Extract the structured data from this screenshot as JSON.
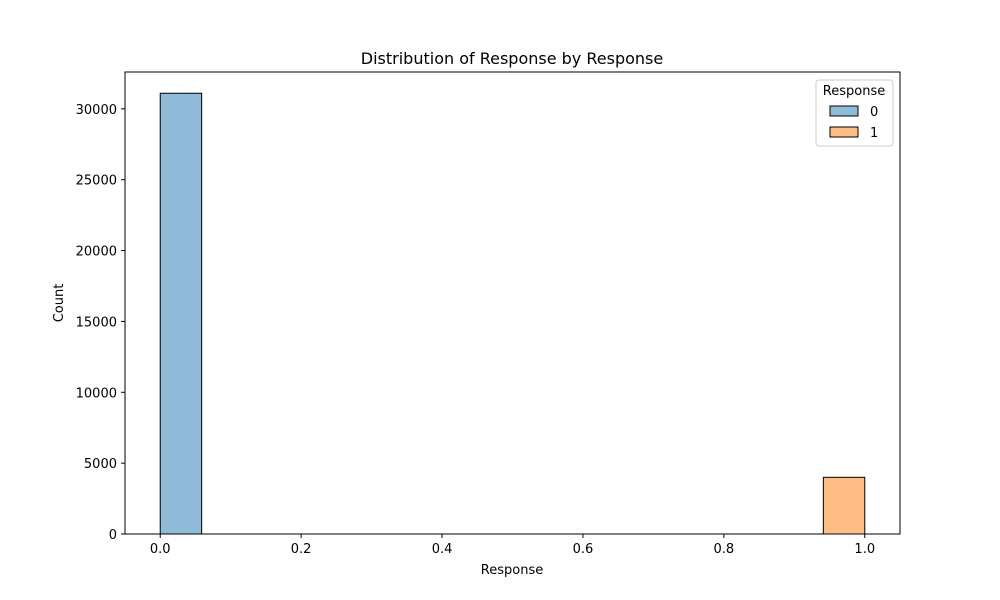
{
  "chart_data": {
    "type": "bar",
    "title": "Distribution of Response by Response",
    "xlabel": "Response",
    "ylabel": "Count",
    "xlim": [
      -0.05,
      1.05
    ],
    "ylim": [
      0,
      32600
    ],
    "x_ticks": [
      0.0,
      0.2,
      0.4,
      0.6,
      0.8,
      1.0
    ],
    "x_tick_labels": [
      "0.0",
      "0.2",
      "0.4",
      "0.6",
      "0.8",
      "1.0"
    ],
    "y_ticks": [
      0,
      5000,
      10000,
      15000,
      20000,
      25000,
      30000
    ],
    "y_tick_labels": [
      "0",
      "5000",
      "10000",
      "15000",
      "20000",
      "25000",
      "30000"
    ],
    "grid": false,
    "legend": {
      "title": "Response",
      "placement": "top-right"
    },
    "series": [
      {
        "name": "0",
        "color": "#8fbbd9",
        "bins": [
          {
            "x0": 0.0,
            "x1": 0.0588,
            "count": 31100
          }
        ]
      },
      {
        "name": "1",
        "color": "#ffbd86",
        "bins": [
          {
            "x0": 0.9412,
            "x1": 1.0,
            "count": 4000
          }
        ]
      }
    ]
  }
}
